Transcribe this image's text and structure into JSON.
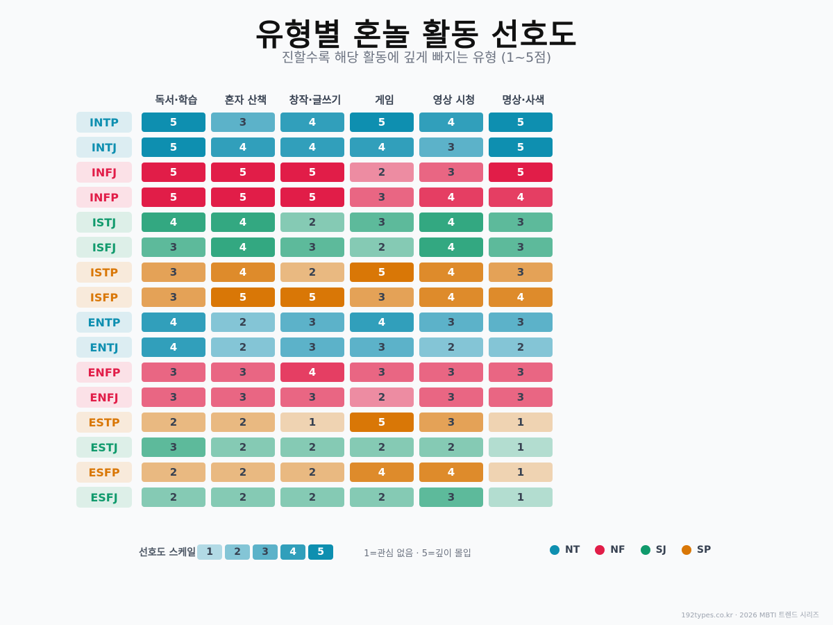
{
  "header": {
    "title": "유형별 혼놀 활동 선호도",
    "subtitle": "진할수록 해당 활동에 깊게 빠지는 유형 (1~5점)"
  },
  "groups": {
    "NT": {
      "color": "#0e8fb0",
      "label_bg": "#dcedf2"
    },
    "NF": {
      "color": "#e11d48",
      "label_bg": "#fbe1e7"
    },
    "SJ": {
      "color": "#109a6c",
      "label_bg": "#ddefe8"
    },
    "SP": {
      "color": "#d97706",
      "label_bg": "#f8eadb"
    }
  },
  "legend": {
    "scale_title": "선호도 스케일",
    "scale_levels": [
      "1",
      "2",
      "3",
      "4",
      "5"
    ],
    "scale_note": "1=관심 없음 · 5=깊이 몰입",
    "group_items": [
      "NT",
      "NF",
      "SJ",
      "SP"
    ]
  },
  "footer": "192types.co.kr · 2026 MBTI 트렌드 시리즈",
  "chart_data": {
    "type": "heatmap",
    "title": "유형별 혼놀 활동 선호도",
    "subtitle": "진할수록 해당 활동에 깊게 빠지는 유형 (1~5점)",
    "columns": [
      "독서·학습",
      "혼자 산책",
      "창작·글쓰기",
      "게임",
      "영상 시청",
      "명상·사색"
    ],
    "value_range": [
      1,
      5
    ],
    "rows": [
      {
        "type": "INTP",
        "group": "NT",
        "values": [
          5,
          3,
          4,
          5,
          4,
          5
        ]
      },
      {
        "type": "INTJ",
        "group": "NT",
        "values": [
          5,
          4,
          4,
          4,
          3,
          5
        ]
      },
      {
        "type": "INFJ",
        "group": "NF",
        "values": [
          5,
          5,
          5,
          2,
          3,
          5
        ]
      },
      {
        "type": "INFP",
        "group": "NF",
        "values": [
          5,
          5,
          5,
          3,
          4,
          4
        ]
      },
      {
        "type": "ISTJ",
        "group": "SJ",
        "values": [
          4,
          4,
          2,
          3,
          4,
          3
        ]
      },
      {
        "type": "ISFJ",
        "group": "SJ",
        "values": [
          3,
          4,
          3,
          2,
          4,
          3
        ]
      },
      {
        "type": "ISTP",
        "group": "SP",
        "values": [
          3,
          4,
          2,
          5,
          4,
          3
        ]
      },
      {
        "type": "ISFP",
        "group": "SP",
        "values": [
          3,
          5,
          5,
          3,
          4,
          4
        ]
      },
      {
        "type": "ENTP",
        "group": "NT",
        "values": [
          4,
          2,
          3,
          4,
          3,
          3
        ]
      },
      {
        "type": "ENTJ",
        "group": "NT",
        "values": [
          4,
          2,
          3,
          3,
          2,
          2
        ]
      },
      {
        "type": "ENFP",
        "group": "NF",
        "values": [
          3,
          3,
          4,
          3,
          3,
          3
        ]
      },
      {
        "type": "ENFJ",
        "group": "NF",
        "values": [
          3,
          3,
          3,
          2,
          3,
          3
        ]
      },
      {
        "type": "ESTP",
        "group": "SP",
        "values": [
          2,
          2,
          1,
          5,
          3,
          1
        ]
      },
      {
        "type": "ESTJ",
        "group": "SJ",
        "values": [
          3,
          2,
          2,
          2,
          2,
          1
        ]
      },
      {
        "type": "ESFP",
        "group": "SP",
        "values": [
          2,
          2,
          2,
          4,
          4,
          1
        ]
      },
      {
        "type": "ESFJ",
        "group": "SJ",
        "values": [
          2,
          2,
          2,
          2,
          3,
          1
        ]
      }
    ],
    "legend": [
      "NT",
      "NF",
      "SJ",
      "SP"
    ]
  }
}
